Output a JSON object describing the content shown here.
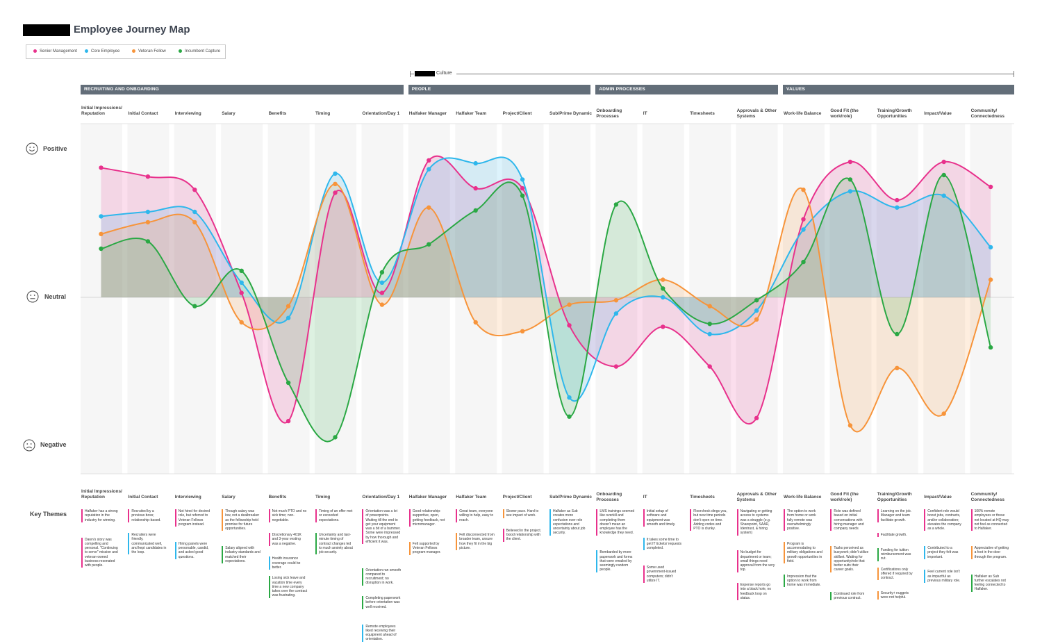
{
  "page": {
    "title": "Employee Journey Map",
    "culture_label": "Culture",
    "key_themes_label": "Key Themes",
    "mood_labels": {
      "positive": "Positive",
      "neutral": "Neutral",
      "negative": "Negative"
    }
  },
  "legend": [
    {
      "name": "Senior Management",
      "color": "#e8318c"
    },
    {
      "name": "Core Employee",
      "color": "#2eb7ec"
    },
    {
      "name": "Veteran Fellow",
      "color": "#f7943a"
    },
    {
      "name": "Incumbent Capture",
      "color": "#2aa844"
    }
  ],
  "sections": [
    {
      "label": "RECRUITING AND ONBOARDING",
      "start": 0,
      "end": 6
    },
    {
      "label": "PEOPLE",
      "start": 7,
      "end": 10
    },
    {
      "label": "ADMIN PROCESSES",
      "start": 11,
      "end": 14
    },
    {
      "label": "VALUES",
      "start": 15,
      "end": 19
    }
  ],
  "columns": [
    {
      "label": "Initial Impressions/ Reputation",
      "themes": [
        {
          "color": "#e8318c",
          "text": "Halfaker has a strong reputation in the industry for winning."
        },
        {
          "color": "#e8318c",
          "text": "Dawn's story was compelling and personal. \"Continuing to serve\" mission and veteran-owned business resonated with people."
        }
      ]
    },
    {
      "label": "Initial Contact",
      "themes": [
        {
          "color": "#e8318c",
          "text": "Recruited by a previous boss; relationship-based."
        },
        {
          "color": "#2eb7ec",
          "text": "Recruiters were friendly, communicated well, and kept candidates in the loop."
        }
      ]
    },
    {
      "label": "Interviewing",
      "themes": [
        {
          "color": "#e8318c",
          "text": "Not hired for desired role, but referred to Veteran Fellows program instead."
        },
        {
          "color": "#2eb7ec",
          "text": "Hiring panels were personable, candid, and asked good questions."
        }
      ]
    },
    {
      "label": "Salary",
      "themes": [
        {
          "color": "#f7943a",
          "text": "Though salary was low, not a dealbreaker as the fellowship held promise for future opportunities."
        },
        {
          "color": "#2aa844",
          "text": "Salary aligned with industry standards and matched their expectations."
        }
      ]
    },
    {
      "label": "Benefits",
      "themes": [
        {
          "color": "#e8318c",
          "text": "Not much PTO and no sick time; non-negotiable."
        },
        {
          "color": "#e8318c",
          "text": "Discretionary 401K and 3-year vesting was a negative."
        },
        {
          "color": "#2eb7ec",
          "text": "Health insurance coverage could be better."
        },
        {
          "color": "#2aa844",
          "text": "Losing sick leave and vacation time every time a new company takes over the contract was frustrating."
        }
      ]
    },
    {
      "label": "Timing",
      "themes": [
        {
          "color": "#e8318c",
          "text": "Timing of an offer met or exceeded expectations."
        },
        {
          "color": "#2aa844",
          "text": "Uncertainty and last-minute timing of contract changes led to much anxiety about job security."
        }
      ]
    },
    {
      "label": "Orientation/Day 1",
      "themes": [
        {
          "color": "#e8318c",
          "text": "Orientation was a lot of powerpoints. Waiting till the end to get your equipment was a bit of a bummer. Some were impressed by how thorough and efficient it was."
        },
        {
          "color": "#2aa844",
          "text": "Orientation ran smooth compared to recruitment; no disruption in work."
        },
        {
          "color": "#2aa844",
          "text": "Completing paperwork before orientation was well received."
        },
        {
          "color": "#2eb7ec",
          "text": "Remote employees liked receiving their equipment ahead of orientation."
        }
      ]
    },
    {
      "label": "Halfaker Manager",
      "themes": [
        {
          "color": "#e8318c",
          "text": "Good relationship: supportive, open, getting feedback, not micromanager."
        },
        {
          "color": "#f7943a",
          "text": "Felt supported by Veteran Fellows program manager."
        }
      ]
    },
    {
      "label": "Halfaker Team",
      "themes": [
        {
          "color": "#e8318c",
          "text": "Great team, everyone willing to help, easy to reach."
        },
        {
          "color": "#f7943a",
          "text": "Felt disconnected from broader team, unsure how they fit in the big picture."
        }
      ]
    },
    {
      "label": "Project/Client",
      "themes": [
        {
          "color": "#f7943a",
          "text": "Slower pace. Hard to see impact of work."
        },
        {
          "color": "#e8318c",
          "text": "Believed in the project. Good relationship with the client."
        }
      ]
    },
    {
      "label": "Sub/Prime Dynamic",
      "themes": [
        {
          "color": "#2eb7ec",
          "text": "Halfaker as Sub creates more confusion over role expectations and uncertainty about job security."
        }
      ]
    },
    {
      "label": "Onboarding Processes",
      "themes": [
        {
          "color": "#e8318c",
          "text": "LMS trainings seemed like overkill and completing them doesn't mean an employee has the knowledge they need."
        },
        {
          "color": "#2eb7ec",
          "text": "Bombarded by more paperwork and forms that were emailed by seemingly random people."
        }
      ]
    },
    {
      "label": "IT",
      "themes": [
        {
          "color": "#e8318c",
          "text": "Initial setup of software and equipment was smooth and timely."
        },
        {
          "color": "#2eb7ec",
          "text": "It takes some time to get IT tickets/ requests completed."
        },
        {
          "color": "#e8318c",
          "text": "Some used government-issued computers; didn't utilize IT."
        }
      ]
    },
    {
      "label": "Timesheets",
      "themes": [
        {
          "color": "#e8318c",
          "text": "Floorcheck dings you, but new time periods don't open on time. Adding codes and PTO is clunky."
        }
      ]
    },
    {
      "label": "Approvals & Other Systems",
      "themes": [
        {
          "color": "#e8318c",
          "text": "Navigating or getting access to systems was a struggle (e.g. Sharepoint, SAAR, Identrust, & hiring system)"
        },
        {
          "color": "#e8318c",
          "text": "No budget for department or team; small things need approval from the very top."
        },
        {
          "color": "#e8318c",
          "text": "Expense reports go into a black hole, no feedback loop on status."
        }
      ]
    },
    {
      "label": "Work-life Balance",
      "themes": [
        {
          "color": "#e8318c",
          "text": "The option to work from home or work fully remote was overwhelmingly positive."
        },
        {
          "color": "#f7943a",
          "text": "Program is accommodating to military obligations and growth opportunities in field."
        },
        {
          "color": "#2aa844",
          "text": "Impression that the option to work from home was immediate."
        }
      ]
    },
    {
      "label": "Good Fit (the work/role)",
      "themes": [
        {
          "color": "#e8318c",
          "text": "Role was defined based on initial conversations with hiring manager and company needs"
        },
        {
          "color": "#f7943a",
          "text": "Tasks perceived as busywork; didn't utilize skillset. Waiting for opportunity/role that better suits their career goals."
        },
        {
          "color": "#2aa844",
          "text": "Continued role from previous contract."
        }
      ]
    },
    {
      "label": "Training/Growth Opportunities",
      "themes": [
        {
          "color": "#e8318c",
          "text": "Learning on the job. Manager and team facilitate growth."
        },
        {
          "color": "#e8318c",
          "text": "Facilitate growth."
        },
        {
          "color": "#2aa844",
          "text": "Funding for tuition reimbursement was cut."
        },
        {
          "color": "#f7943a",
          "text": "Certifications only offered if required by contract."
        },
        {
          "color": "#f7943a",
          "text": "Security+ nuggets were not helpful."
        }
      ]
    },
    {
      "label": "Impact/Value",
      "themes": [
        {
          "color": "#e8318c",
          "text": "Confident role would boost jobs, contracts, and/or collaboration; elevates the company as a whole."
        },
        {
          "color": "#2eb7ec",
          "text": "Contributed to a project they felt was important."
        },
        {
          "color": "#2eb7ec",
          "text": "Feel current role isn't as impactful as previous military role."
        }
      ]
    },
    {
      "label": "Community/ Connectedness",
      "themes": [
        {
          "color": "#e8318c",
          "text": "100% remote employees or those not located at HQ may not feel as connected to Halfaker."
        },
        {
          "color": "#f7943a",
          "text": "Appreciative of getting a foot in the door through the program."
        },
        {
          "color": "#2aa844",
          "text": "Halfaker as Sub further escalates not feeling connected to Halfaker."
        }
      ]
    }
  ],
  "chart_data": {
    "type": "line",
    "categories": [
      "Initial Impressions/ Reputation",
      "Initial Contact",
      "Interviewing",
      "Salary",
      "Benefits",
      "Timing",
      "Orientation/Day 1",
      "Halfaker Manager",
      "Halfaker Team",
      "Project/Client",
      "Sub/Prime Dynamic",
      "Onboarding Processes",
      "IT",
      "Timesheets",
      "Approvals & Other Systems",
      "Work-life Balance",
      "Good Fit (the work/role)",
      "Training/Growth Opportunities",
      "Impact/Value",
      "Community/ Connectedness"
    ],
    "y_scale": {
      "positive": 1,
      "neutral": 0,
      "negative": -1
    },
    "ylim": [
      -1.2,
      1.2
    ],
    "legend_position": "top-left",
    "series": [
      {
        "name": "Senior Management",
        "color": "#e8318c",
        "values": [
          0.88,
          0.82,
          0.73,
          0.03,
          -0.84,
          0.71,
          0.03,
          0.93,
          0.74,
          0.74,
          -0.19,
          -0.47,
          -0.2,
          -0.47,
          -0.82,
          0.53,
          0.92,
          0.66,
          0.92,
          0.75
        ]
      },
      {
        "name": "Core Employee",
        "color": "#2eb7ec",
        "values": [
          0.55,
          0.58,
          0.58,
          0.1,
          -0.14,
          0.84,
          0.1,
          0.87,
          0.91,
          0.8,
          -0.68,
          -0.11,
          0.0,
          -0.25,
          -0.09,
          0.46,
          0.72,
          0.61,
          0.69,
          0.34
        ]
      },
      {
        "name": "Veteran Fellow",
        "color": "#f7943a",
        "values": [
          0.43,
          0.51,
          0.51,
          -0.17,
          -0.06,
          0.77,
          -0.05,
          0.61,
          -0.17,
          -0.23,
          -0.05,
          -0.02,
          0.12,
          -0.06,
          -0.15,
          0.73,
          -0.87,
          -0.48,
          -0.79,
          0.12
        ]
      },
      {
        "name": "Incumbent Capture",
        "color": "#2aa844",
        "values": [
          0.33,
          0.38,
          -0.06,
          0.18,
          -0.58,
          -0.95,
          0.17,
          0.36,
          0.59,
          0.69,
          -0.81,
          0.63,
          0.06,
          -0.18,
          -0.02,
          0.24,
          0.8,
          -0.25,
          0.83,
          -0.34
        ]
      }
    ]
  }
}
